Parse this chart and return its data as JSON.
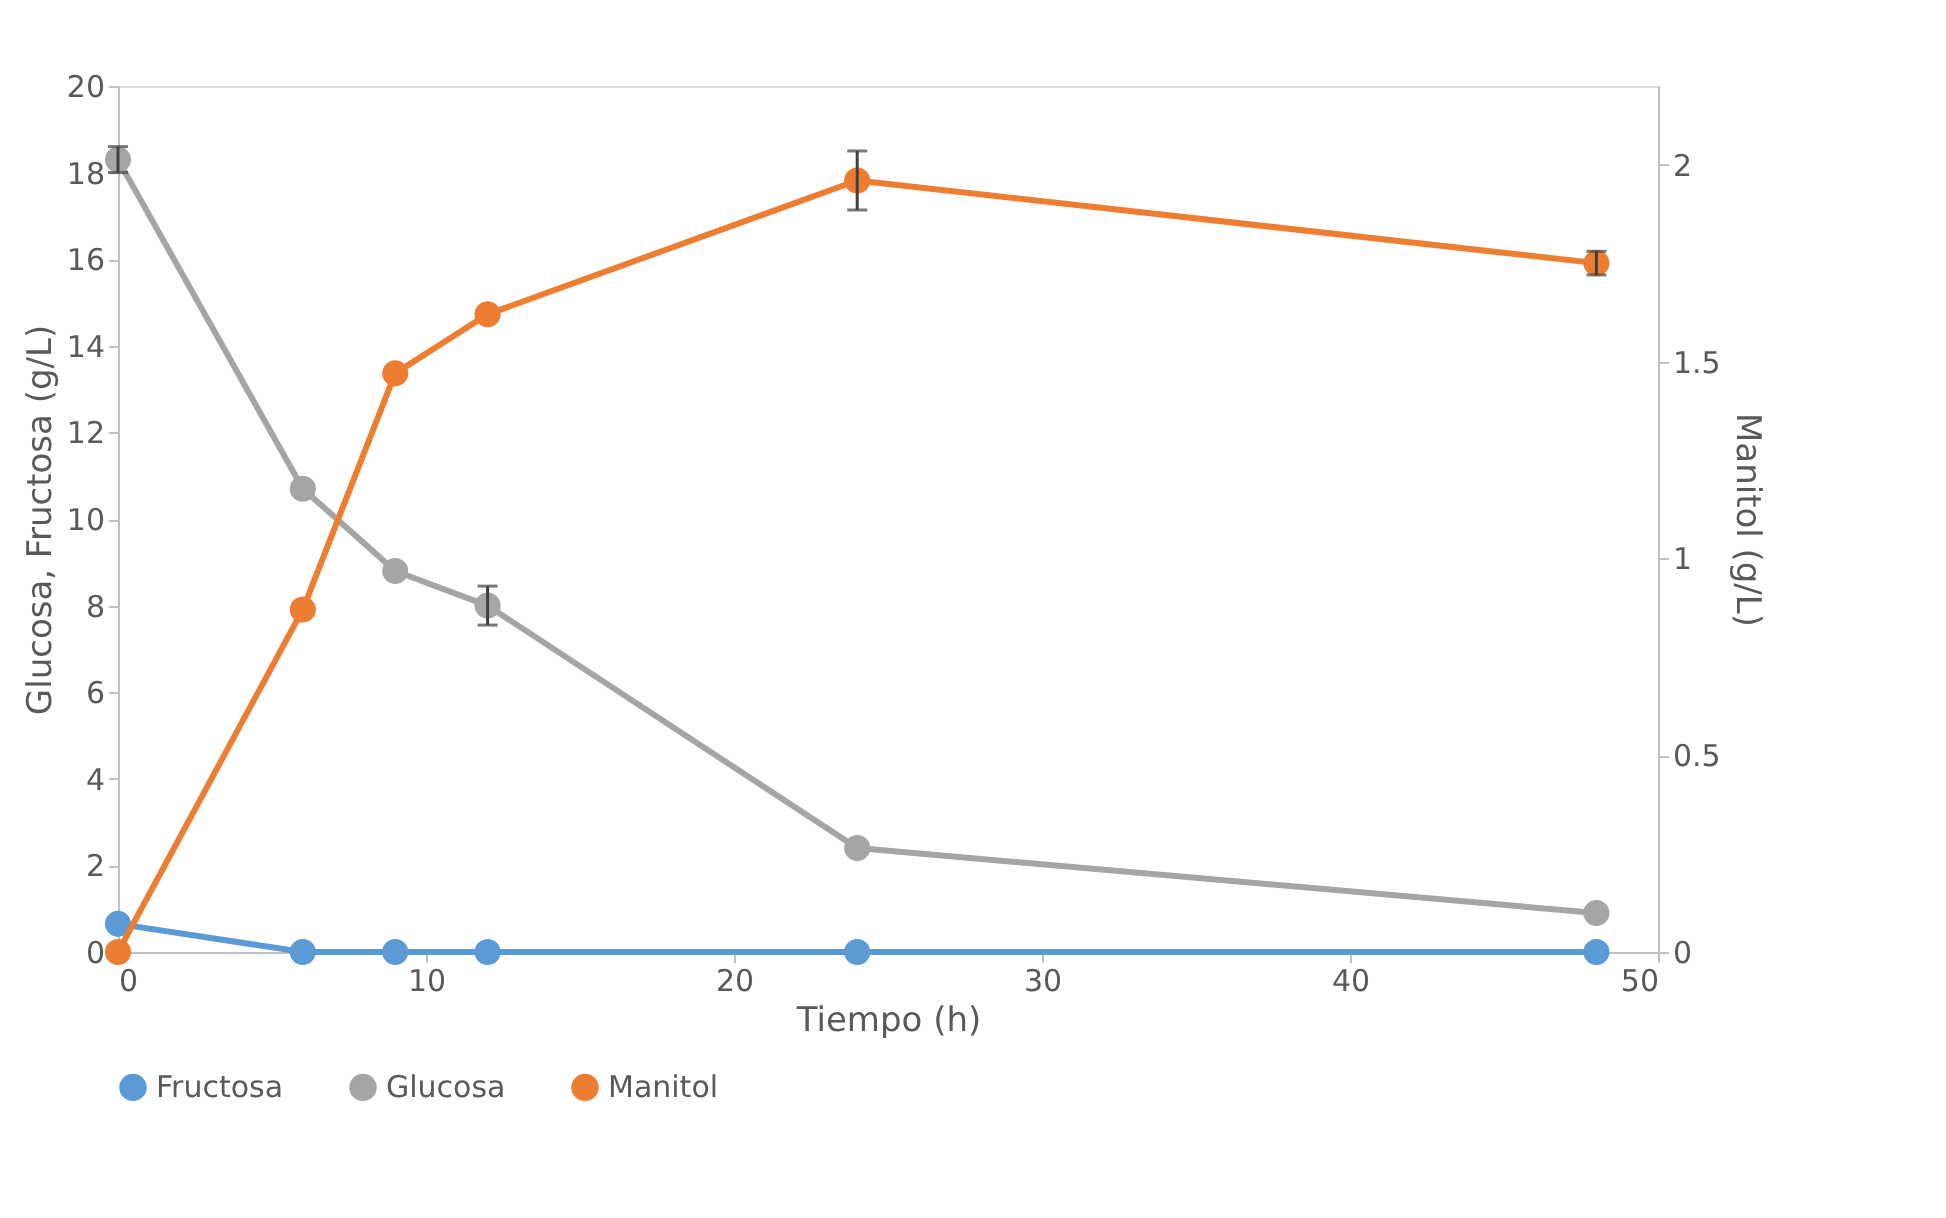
{
  "chart_data": {
    "type": "line",
    "xlabel": "Tiempo (h)",
    "ylabel": "Glucosa, Fructosa (g/L)",
    "y2label": "Manitol (g/L)",
    "x": [
      0,
      6,
      9,
      12,
      24,
      48
    ],
    "series": [
      {
        "name": "Fructosa",
        "color": "#5b9bd5",
        "values": [
          0.65,
          0,
          0,
          0,
          0,
          0
        ]
      },
      {
        "name": "Glucosa",
        "color": "#a5a5a5",
        "values": [
          18.3,
          10.7,
          8.8,
          8.0,
          2.4,
          0.9
        ],
        "errors": [
          0.3,
          null,
          null,
          0.45,
          null,
          null
        ]
      },
      {
        "name": "Manitol",
        "color": "#ed7d31",
        "axis": "y2",
        "values": [
          0,
          0.87,
          1.47,
          1.62,
          1.96,
          1.75
        ],
        "errors": [
          null,
          null,
          null,
          null,
          0.075,
          0.03
        ]
      }
    ],
    "xlim": [
      0,
      50
    ],
    "xticks": [
      0,
      10,
      20,
      30,
      40,
      50
    ],
    "ylim": [
      0,
      20
    ],
    "yticks": [
      0,
      2,
      4,
      6,
      8,
      10,
      12,
      14,
      16,
      18,
      20
    ],
    "y2lim": [
      0,
      2.2
    ],
    "y2ticks": [
      0,
      0.5,
      1,
      1.5,
      2
    ],
    "grid": false,
    "legend": "bottom",
    "marker": "circle",
    "line_style": "solid"
  }
}
